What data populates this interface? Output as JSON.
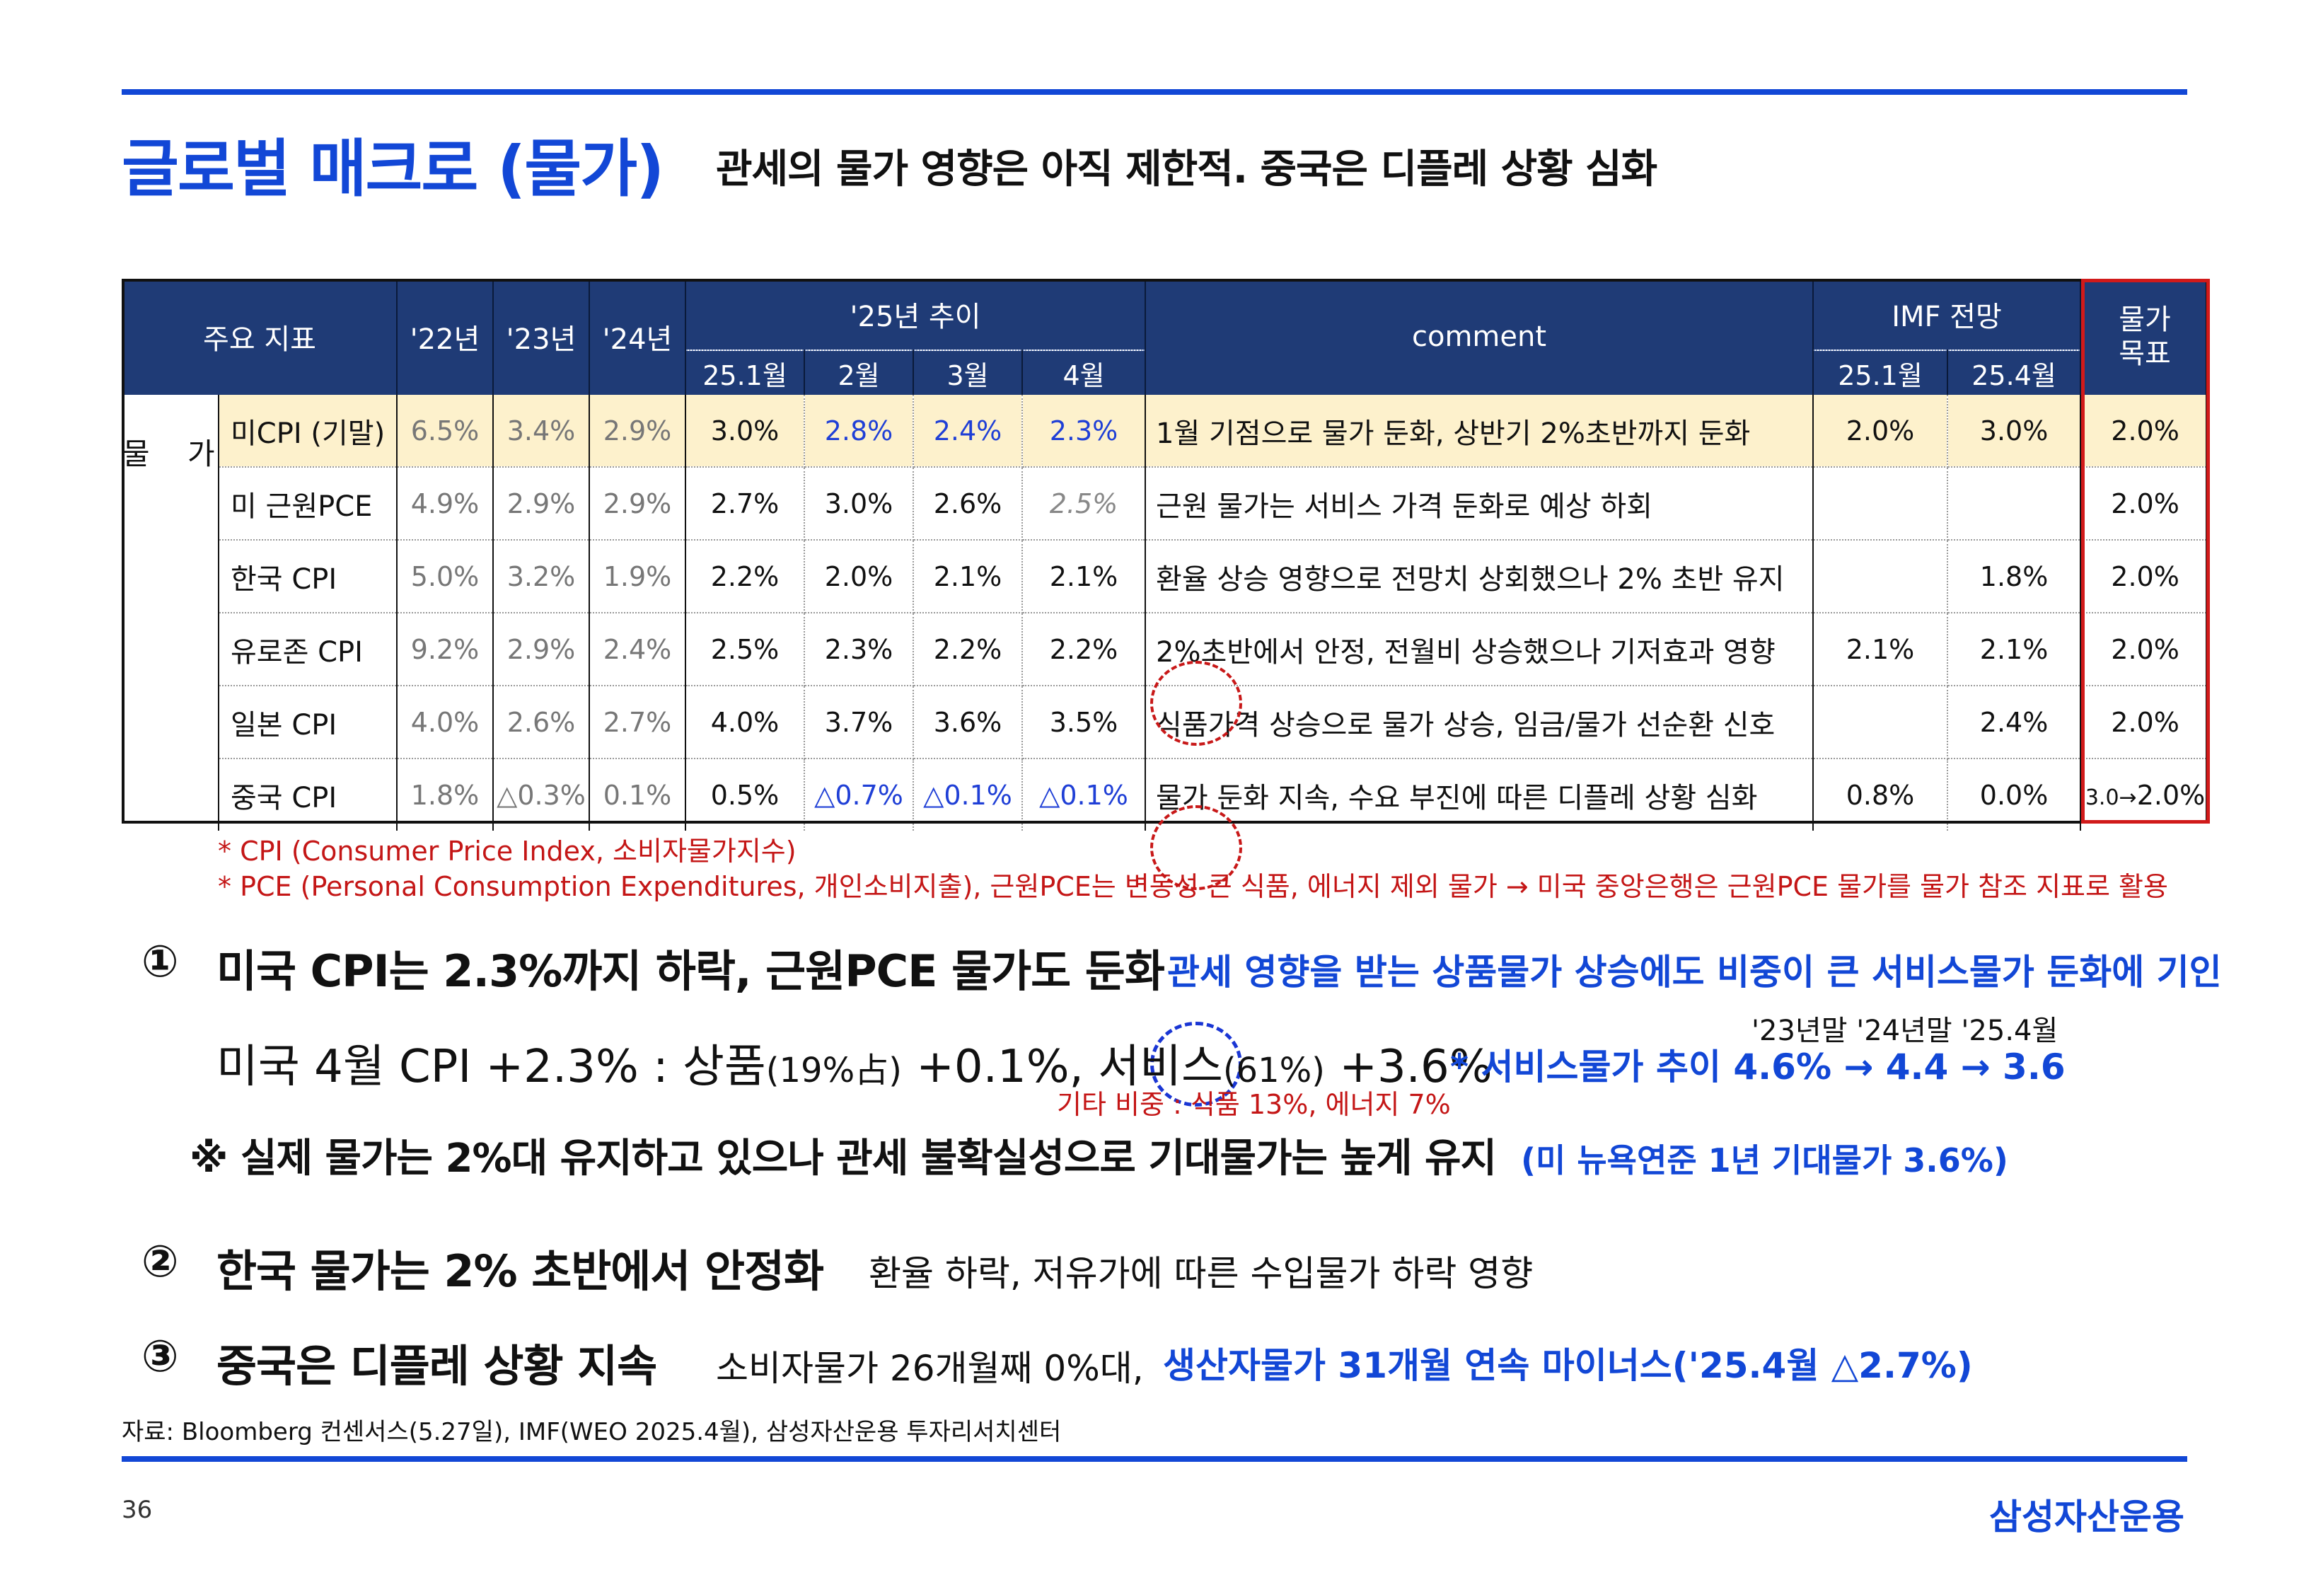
{
  "header": {
    "title": "글로벌 매크로 (물가)",
    "subtitle": "관세의 물가 영향은 아직 제한적. 중국은 디플레 상황 심화"
  },
  "table": {
    "headers": {
      "indicator": "주요 지표",
      "y22": "'22년",
      "y23": "'23년",
      "y24": "'24년",
      "trend25": "'25년 추이",
      "months": [
        "25.1월",
        "2월",
        "3월",
        "4월"
      ],
      "comment": "comment",
      "imf": "IMF 전망",
      "imf_sub": [
        "25.1월",
        "25.4월"
      ],
      "target": "물가\n목표"
    },
    "category": "물 가",
    "rows": [
      {
        "name": "미CPI (기말)",
        "y22": "6.5%",
        "y23": "3.4%",
        "y24": "2.9%",
        "m": [
          "3.0%",
          "2.8%",
          "2.4%",
          "2.3%"
        ],
        "comment": "1월 기점으로 물가 둔화, 상반기  2%초반까지 둔화",
        "imf": [
          "2.0%",
          "3.0%"
        ],
        "target": "2.0%"
      },
      {
        "name": "미 근원PCE",
        "y22": "4.9%",
        "y23": "2.9%",
        "y24": "2.9%",
        "m": [
          "2.7%",
          "3.0%",
          "2.6%",
          "2.5%"
        ],
        "comment": "근원 물가는 서비스 가격 둔화로 예상 하회",
        "imf": [
          "",
          ""
        ],
        "target": "2.0%"
      },
      {
        "name": "한국 CPI",
        "y22": "5.0%",
        "y23": "3.2%",
        "y24": "1.9%",
        "m": [
          "2.2%",
          "2.0%",
          "2.1%",
          "2.1%"
        ],
        "comment": "환율 상승 영향으로 전망치 상회했으나 2% 초반 유지",
        "imf": [
          "",
          "1.8%"
        ],
        "target": "2.0%"
      },
      {
        "name": "유로존 CPI",
        "y22": "9.2%",
        "y23": "2.9%",
        "y24": "2.4%",
        "m": [
          "2.5%",
          "2.3%",
          "2.2%",
          "2.2%"
        ],
        "comment": "2%초반에서 안정, 전월비 상승했으나 기저효과 영향",
        "imf": [
          "2.1%",
          "2.1%"
        ],
        "target": "2.0%"
      },
      {
        "name": "일본 CPI",
        "y22": "4.0%",
        "y23": "2.6%",
        "y24": "2.7%",
        "m": [
          "4.0%",
          "3.7%",
          "3.6%",
          "3.5%"
        ],
        "comment": "식품가격 상승으로 물가 상승, 임금/물가 선순환 신호",
        "imf": [
          "",
          "2.4%"
        ],
        "target": "2.0%"
      },
      {
        "name": "중국 CPI",
        "y22": "1.8%",
        "y23": "△0.3%",
        "y24": "0.1%",
        "m": [
          "0.5%",
          "△0.7%",
          "△0.1%",
          "△0.1%"
        ],
        "comment": "물가 둔화 지속, 수요 부진에 따른 디플레 상황 심화",
        "imf": [
          "0.8%",
          "0.0%"
        ],
        "target_small": "3.0→",
        "target": "2.0%"
      }
    ]
  },
  "notes": {
    "cpi": "* CPI (Consumer Price Index, 소비자물가지수)",
    "pce": "* PCE (Personal Consumption Expenditures, 개인소비지출), 근원PCE는 변동성 큰 식품, 에너지 제외 물가 → 미국 중앙은행은 근원PCE 물가를 물가 참조 지표로 활용"
  },
  "points": {
    "p1": {
      "num": "①",
      "title": "미국 CPI는 2.3%까지 하락, 근원PCE 물가도 둔화",
      "blue": "관세 영향을 받는 상품물가 상승에도 비중이 큰 서비스물가 둔화에 기인",
      "us_a": "미국 4월 CPI +2.3% : 상품",
      "us_b": "(19%占)",
      "us_c": " +0.1%, 서비스",
      "us_d": "(61%)",
      "us_e": " +3.6%",
      "years": "'23년말   '24년말  '25.4월",
      "svc_trend": "* 서비스물가 추이 4.6% → 4.4 → 3.6",
      "other_weight": "기타 비중 : 식품 13%, 에너지 7%",
      "note_line": "※ 실제 물가는 2%대 유지하고 있으나 관세 불확실성으로 기대물가는 높게 유지",
      "nyfed": "(미 뉴욕연준 1년 기대물가 3.6%)"
    },
    "p2": {
      "num": "②",
      "title": "한국 물가는 2% 초반에서 안정화",
      "desc": "환율 하락, 저유가에 따른 수입물가 하락 영향"
    },
    "p3": {
      "num": "③",
      "title": "중국은 디플레 상황 지속",
      "desc": "소비자물가 26개월째 0%대,",
      "blue": "생산자물가 31개월 연속 마이너스('25.4월 △2.7%)"
    }
  },
  "footer": {
    "source": "자료: Bloomberg 컨센서스(5.27일), IMF(WEO 2025.4월), 삼성자산운용 투자리서치센터",
    "page": "36",
    "brand": "삼성자산운용"
  },
  "colors": {
    "accent": "#1247d6",
    "header_bg": "#1f3b76",
    "highlight_row": "#fdf1cc",
    "red": "#c41616"
  }
}
